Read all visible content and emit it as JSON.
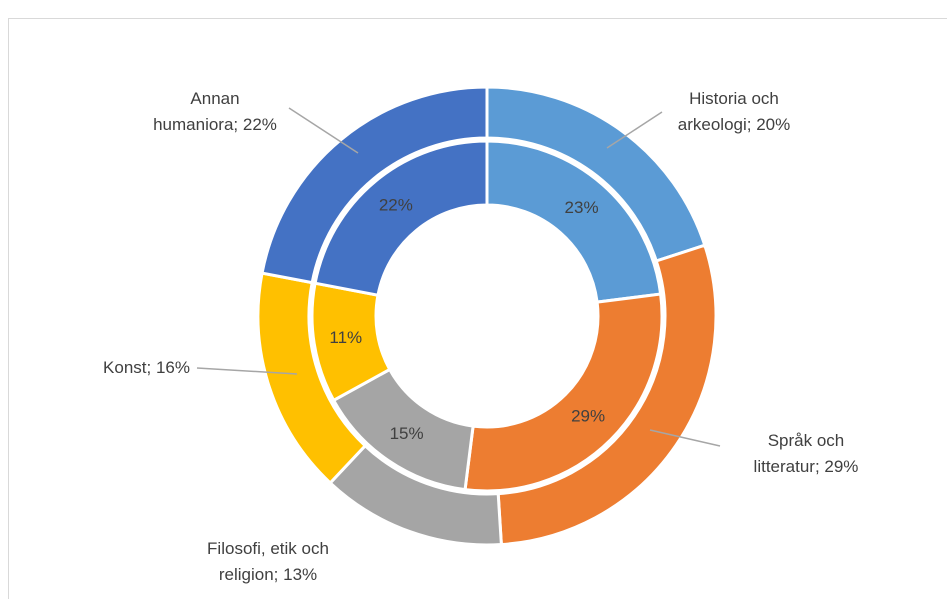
{
  "chart_data": {
    "type": "nested-donut",
    "colors": [
      "#5b9bd5",
      "#ed7d31",
      "#a5a5a5",
      "#ffc000",
      "#4472c4"
    ],
    "series": [
      {
        "values": [
          20,
          29,
          13,
          16,
          22
        ],
        "value_labels": [
          "Historia och arkeologi; 20%",
          "Språk och litteratur; 29%",
          "Filosofi, etik och religion; 13%",
          "Konst; 16%",
          "Annan humaniora; 22%"
        ]
      },
      {
        "values": [
          23,
          29,
          15,
          11,
          22
        ],
        "value_labels": [
          "23%",
          "29%",
          "15%",
          "11%",
          "22%"
        ]
      }
    ]
  }
}
